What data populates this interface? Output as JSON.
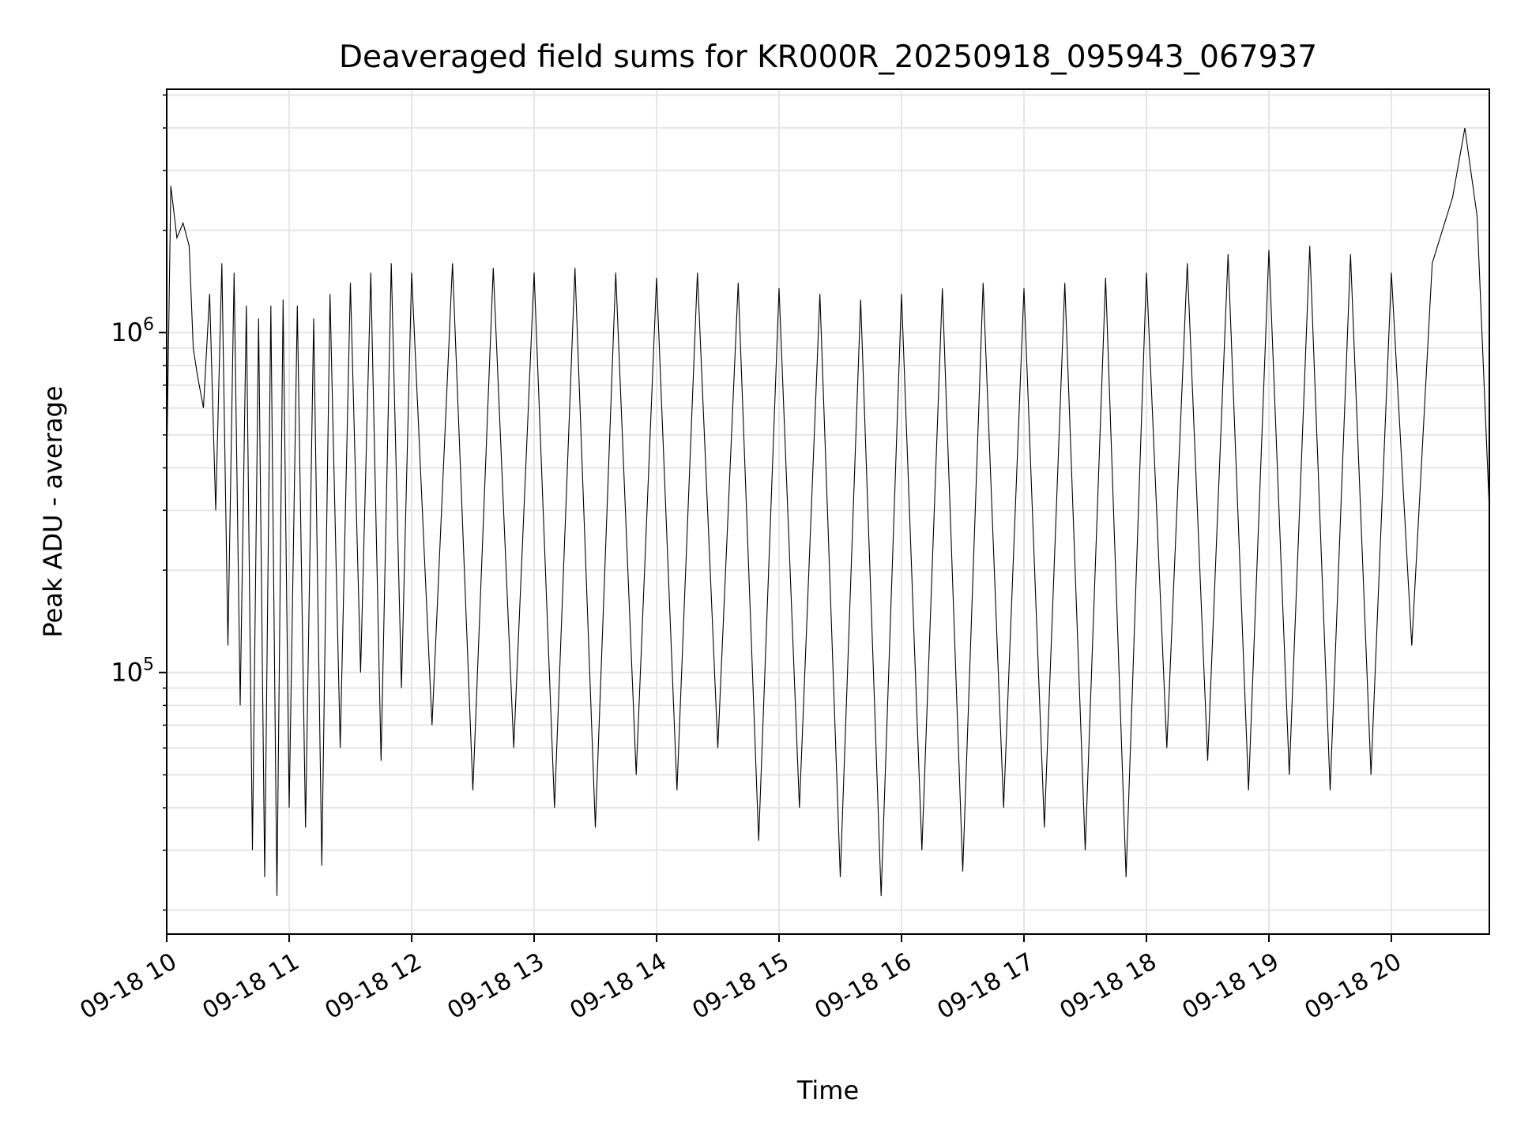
{
  "chart_data": {
    "type": "line",
    "title": "Deaveraged field sums for KR000R_20250918_095943_067937",
    "xlabel": "Time",
    "ylabel": "Peak ADU - average",
    "x_start": "2025-09-18 10:00",
    "x_end": "2025-09-18 20:48",
    "xlim": [
      "2025-09-18 10:00",
      "2025-09-18 20:48"
    ],
    "yscale": "log",
    "ylim": [
      17000,
      5200000
    ],
    "x_tick_labels": [
      "09-18 10",
      "09-18 11",
      "09-18 12",
      "09-18 13",
      "09-18 14",
      "09-18 15",
      "09-18 16",
      "09-18 17",
      "09-18 18",
      "09-18 19",
      "09-18 20"
    ],
    "y_tick_labels": [
      {
        "value": 100000,
        "base": "10",
        "exp": "5"
      },
      {
        "value": 1000000,
        "base": "10",
        "exp": "6"
      }
    ],
    "grid": true,
    "line_color": "#000000",
    "series": [
      {
        "points": [
          [
            "10:00",
            400000
          ],
          [
            "10:02",
            2700000
          ],
          [
            "10:05",
            1900000
          ],
          [
            "10:08",
            2100000
          ],
          [
            "10:11",
            1800000
          ],
          [
            "10:13",
            900000
          ],
          [
            "10:15",
            750000
          ],
          [
            "10:18",
            600000
          ],
          [
            "10:21",
            1300000
          ],
          [
            "10:24",
            300000
          ],
          [
            "10:27",
            1600000
          ],
          [
            "10:30",
            120000
          ],
          [
            "10:33",
            1500000
          ],
          [
            "10:36",
            80000
          ],
          [
            "10:39",
            1200000
          ],
          [
            "10:42",
            30000
          ],
          [
            "10:45",
            1100000
          ],
          [
            "10:48",
            25000
          ],
          [
            "10:51",
            1200000
          ],
          [
            "10:54",
            22000
          ],
          [
            "10:57",
            1250000
          ],
          [
            "11:00",
            40000
          ],
          [
            "11:04",
            1200000
          ],
          [
            "11:08",
            35000
          ],
          [
            "11:12",
            1100000
          ],
          [
            "11:16",
            27000
          ],
          [
            "11:20",
            1300000
          ],
          [
            "11:25",
            60000
          ],
          [
            "11:30",
            1400000
          ],
          [
            "11:35",
            100000
          ],
          [
            "11:40",
            1500000
          ],
          [
            "11:45",
            55000
          ],
          [
            "11:50",
            1600000
          ],
          [
            "11:55",
            90000
          ],
          [
            "12:00",
            1500000
          ],
          [
            "12:10",
            70000
          ],
          [
            "12:20",
            1600000
          ],
          [
            "12:30",
            45000
          ],
          [
            "12:40",
            1550000
          ],
          [
            "12:50",
            60000
          ],
          [
            "13:00",
            1500000
          ],
          [
            "13:10",
            40000
          ],
          [
            "13:20",
            1550000
          ],
          [
            "13:30",
            35000
          ],
          [
            "13:40",
            1500000
          ],
          [
            "13:50",
            50000
          ],
          [
            "14:00",
            1450000
          ],
          [
            "14:10",
            45000
          ],
          [
            "14:20",
            1500000
          ],
          [
            "14:30",
            60000
          ],
          [
            "14:40",
            1400000
          ],
          [
            "14:50",
            32000
          ],
          [
            "15:00",
            1350000
          ],
          [
            "15:10",
            40000
          ],
          [
            "15:20",
            1300000
          ],
          [
            "15:30",
            25000
          ],
          [
            "15:40",
            1250000
          ],
          [
            "15:50",
            22000
          ],
          [
            "16:00",
            1300000
          ],
          [
            "16:10",
            30000
          ],
          [
            "16:20",
            1350000
          ],
          [
            "16:30",
            26000
          ],
          [
            "16:40",
            1400000
          ],
          [
            "16:50",
            40000
          ],
          [
            "17:00",
            1350000
          ],
          [
            "17:10",
            35000
          ],
          [
            "17:20",
            1400000
          ],
          [
            "17:30",
            30000
          ],
          [
            "17:40",
            1450000
          ],
          [
            "17:50",
            25000
          ],
          [
            "18:00",
            1500000
          ],
          [
            "18:10",
            60000
          ],
          [
            "18:20",
            1600000
          ],
          [
            "18:30",
            55000
          ],
          [
            "18:40",
            1700000
          ],
          [
            "18:50",
            45000
          ],
          [
            "19:00",
            1750000
          ],
          [
            "19:10",
            50000
          ],
          [
            "19:20",
            1800000
          ],
          [
            "19:30",
            45000
          ],
          [
            "19:40",
            1700000
          ],
          [
            "19:50",
            50000
          ],
          [
            "20:00",
            1500000
          ],
          [
            "20:10",
            120000
          ],
          [
            "20:20",
            1600000
          ],
          [
            "20:30",
            2500000
          ],
          [
            "20:36",
            4000000
          ],
          [
            "20:42",
            2200000
          ],
          [
            "20:48",
            300000
          ]
        ]
      }
    ]
  }
}
